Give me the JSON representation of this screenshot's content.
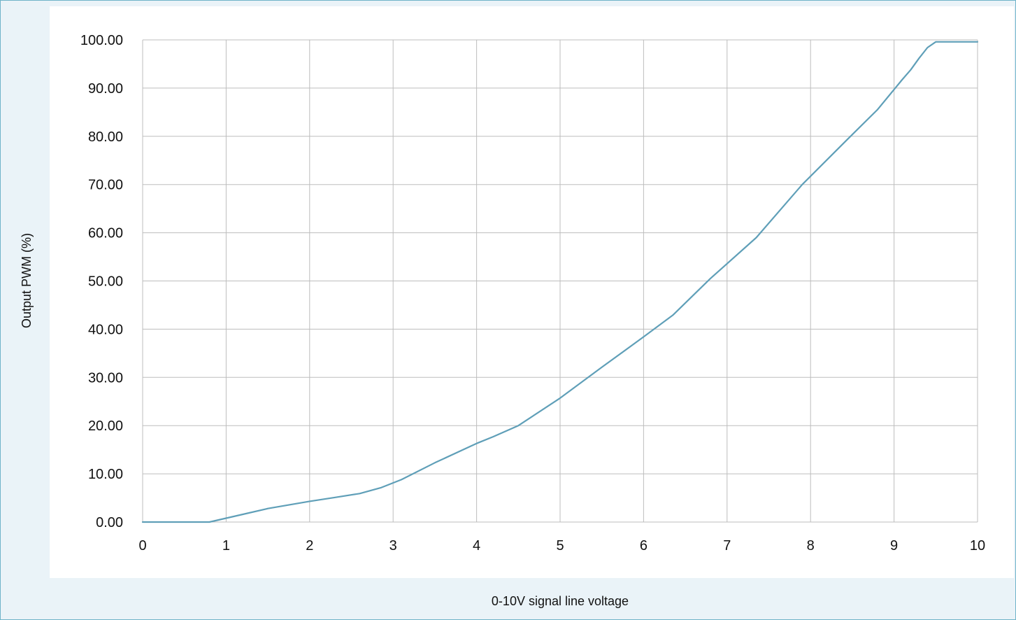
{
  "chart_data": {
    "type": "line",
    "title": "",
    "xlabel": "0-10V signal line voltage",
    "ylabel": "Output PWM (%)",
    "xlim": [
      0,
      10
    ],
    "ylim": [
      0,
      100
    ],
    "x_ticks": [
      "0",
      "1",
      "2",
      "3",
      "4",
      "5",
      "6",
      "7",
      "8",
      "9",
      "10"
    ],
    "y_ticks": [
      "0.00",
      "10.00",
      "20.00",
      "30.00",
      "40.00",
      "50.00",
      "60.00",
      "70.00",
      "80.00",
      "90.00",
      "100.00"
    ],
    "grid": true,
    "colors": {
      "series": "#5f9fb8",
      "grid": "#bdbdbd",
      "frame": "#6fb4c9",
      "background": "#eaf3f8"
    },
    "series": [
      {
        "x": [
          0,
          0.8,
          1.0,
          1.2,
          1.5,
          2.0,
          2.3,
          2.6,
          2.85,
          3.1,
          3.5,
          4.0,
          4.2,
          4.5,
          5.0,
          5.5,
          6.0,
          6.35,
          6.8,
          7.35,
          7.9,
          8.45,
          8.8,
          9.1,
          9.2,
          9.3,
          9.4,
          9.5,
          10.0
        ],
        "y": [
          0,
          0,
          0.8,
          1.6,
          2.8,
          4.3,
          5.1,
          5.9,
          7.1,
          8.8,
          12.3,
          16.3,
          17.7,
          20.0,
          25.7,
          32.1,
          38.4,
          42.9,
          50.5,
          59.0,
          70.0,
          79.5,
          85.5,
          91.8,
          93.8,
          96.2,
          98.4,
          99.6,
          99.6
        ]
      }
    ]
  }
}
